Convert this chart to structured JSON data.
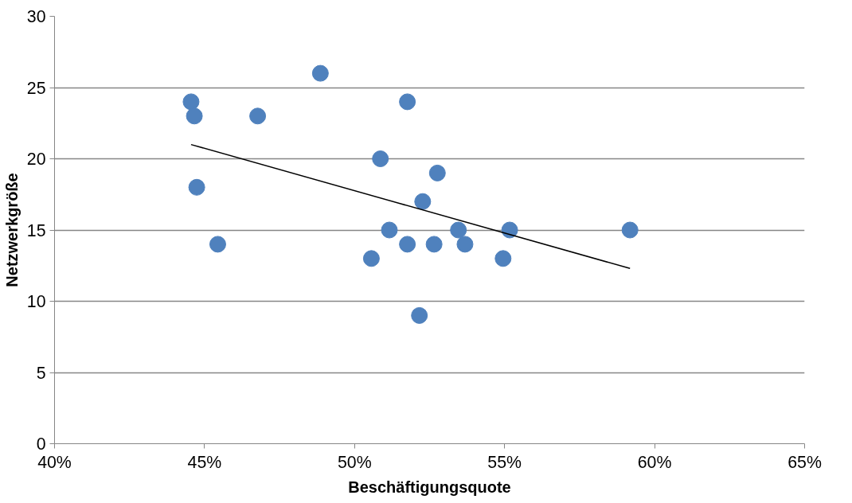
{
  "chart_data": {
    "type": "scatter",
    "xlabel": "Beschäftigungsquote",
    "ylabel": "Netzwerkgröße",
    "xlim": [
      40,
      65
    ],
    "xticks": [
      {
        "value": 40,
        "label": "40%"
      },
      {
        "value": 45,
        "label": "45%"
      },
      {
        "value": 50,
        "label": "50%"
      },
      {
        "value": 55,
        "label": "55%"
      },
      {
        "value": 60,
        "label": "60%"
      },
      {
        "value": 65,
        "label": "65%"
      }
    ],
    "ylim": [
      0,
      30
    ],
    "yticks": [
      0,
      5,
      10,
      15,
      20,
      25,
      30
    ],
    "grid": "y",
    "marker": "circle",
    "series": [
      {
        "color": "#4f81bd",
        "x": [
          44.55,
          44.66,
          44.74,
          45.44,
          46.77,
          48.86,
          50.56,
          50.86,
          51.16,
          51.76,
          51.76,
          52.16,
          52.27,
          52.65,
          52.76,
          53.46,
          53.68,
          54.95,
          55.17,
          59.18
        ],
        "values": [
          24,
          23,
          18,
          14,
          23,
          26,
          13,
          20,
          15,
          24,
          14,
          9,
          17,
          14,
          19,
          15,
          14,
          13,
          15,
          15
        ]
      },
      {
        "type": "line",
        "color": "#000000",
        "marker": "none",
        "x": [
          44.55,
          59.18
        ],
        "values": [
          21.0,
          12.3
        ]
      }
    ]
  }
}
